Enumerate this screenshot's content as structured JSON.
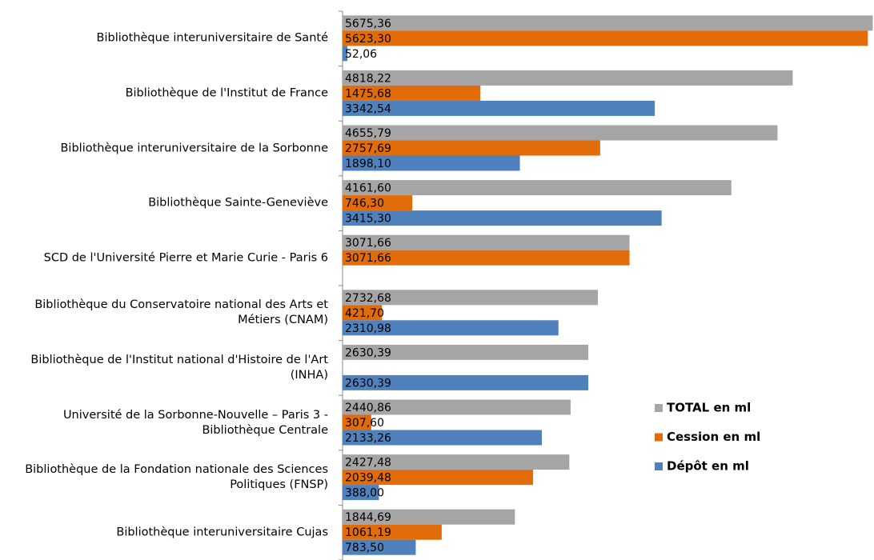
{
  "chart_data": {
    "type": "bar",
    "orientation": "horizontal",
    "categories": [
      "Bibliothèque interuniversitaire de Santé",
      "Bibliothèque de l'Institut de France",
      "Bibliothèque interuniversitaire de la Sorbonne",
      "Bibliothèque Sainte-Geneviève",
      "SCD de l'Université Pierre et Marie Curie - Paris 6",
      "Bibliothèque du Conservatoire national des Arts et Métiers (CNAM)",
      "Bibliothèque de l'Institut national d'Histoire de l'Art (INHA)",
      "Université de la Sorbonne-Nouvelle – Paris 3 - Bibliothèque Centrale",
      "Bibliothèque de la Fondation nationale des Sciences Politiques (FNSP)",
      "Bibliothèque interuniversitaire Cujas"
    ],
    "series": [
      {
        "name": "TOTAL en ml",
        "color": "#a5a5a5",
        "values": [
          5675.36,
          4818.22,
          4655.79,
          4161.6,
          3071.66,
          2732.68,
          2630.39,
          2440.86,
          2427.48,
          1844.69
        ],
        "value_labels": [
          "5675,36",
          "4818,22",
          "4655,79",
          "4161,60",
          "3071,66",
          "2732,68",
          "2630,39",
          "2440,86",
          "2427,48",
          "1844,69"
        ]
      },
      {
        "name": "Cession en ml",
        "color": "#e36c0a",
        "values": [
          5623.3,
          1475.68,
          2757.69,
          746.3,
          3071.66,
          421.7,
          null,
          307.6,
          2039.48,
          1061.19
        ],
        "value_labels": [
          "5623,30",
          "1475,68",
          "2757,69",
          "746,30",
          "3071,66",
          "421,70",
          null,
          "307,60",
          "2039,48",
          "1061,19"
        ]
      },
      {
        "name": "Dépôt en ml",
        "color": "#4f81bd",
        "values": [
          52.06,
          3342.54,
          1898.1,
          3415.3,
          null,
          2310.98,
          2630.39,
          2133.26,
          388.0,
          783.5
        ],
        "value_labels": [
          "52,06",
          "3342,54",
          "1898,10",
          "3415,30",
          null,
          "2310,98",
          "2630,39",
          "2133,26",
          "388,00",
          "783,50"
        ]
      }
    ],
    "xlim": [
      0,
      5680
    ]
  }
}
